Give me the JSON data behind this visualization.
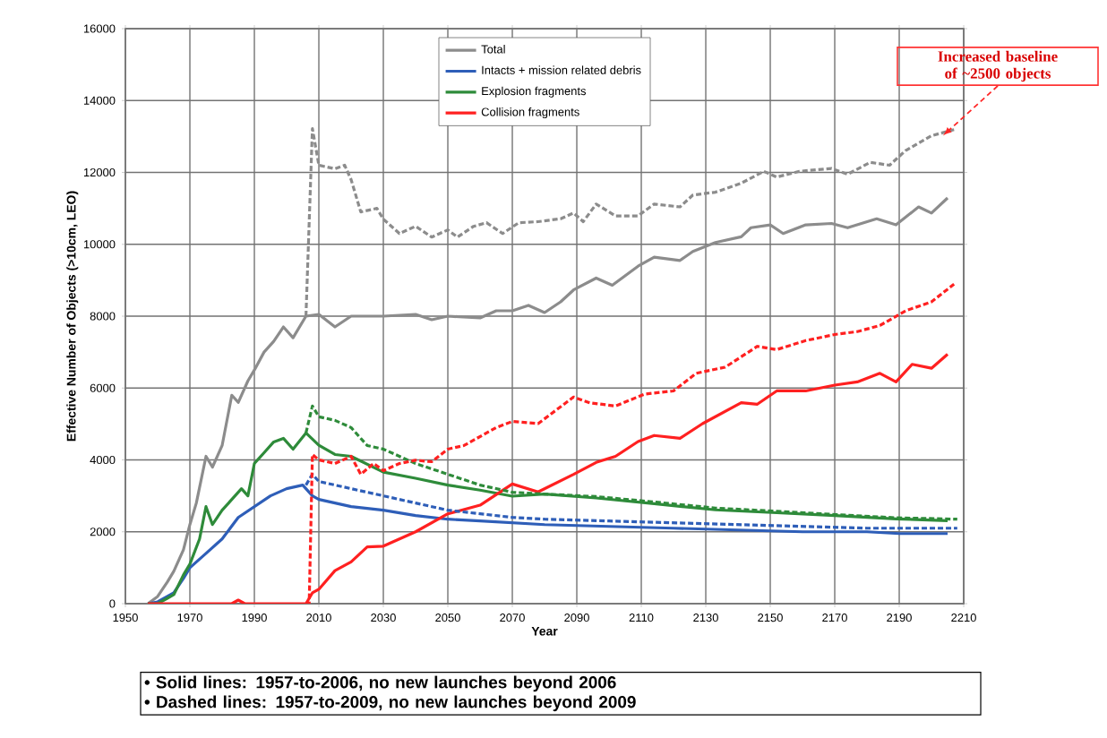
{
  "chart_data": {
    "type": "line",
    "xlabel": "Year",
    "ylabel": "Effective Number of Objects (>10cm, LEO)",
    "xlim": [
      1950,
      2210
    ],
    "xticks": [
      1950,
      1970,
      1990,
      2010,
      2030,
      2050,
      2070,
      2090,
      2110,
      2130,
      2150,
      2170,
      2190,
      2210
    ],
    "ylim": [
      0,
      16000
    ],
    "yticks": [
      0,
      2000,
      4000,
      6000,
      8000,
      10000,
      12000,
      14000,
      16000
    ],
    "grid": true,
    "legend": "top",
    "marker": "none",
    "series": [
      {
        "name": "Total",
        "color": "#8c8c8c",
        "line_style": "solid",
        "x": [
          1957,
          1960,
          1963,
          1965,
          1968,
          1970,
          1972,
          1975,
          1977,
          1980,
          1983,
          1985,
          1988,
          1990,
          1993,
          1996,
          1999,
          2002,
          2006,
          2010,
          2015,
          2020,
          2030,
          2040,
          2045,
          2050,
          2060,
          2065,
          2070,
          2075,
          2080,
          2085,
          2089,
          2096,
          2101,
          2109,
          2114,
          2122,
          2126,
          2133,
          2141,
          2144,
          2150,
          2154,
          2161,
          2169,
          2174,
          2183,
          2189,
          2196,
          2200,
          2205
        ],
        "values": [
          0,
          200,
          600,
          900,
          1500,
          2200,
          2800,
          4100,
          3800,
          4400,
          5800,
          5600,
          6200,
          6500,
          7000,
          7300,
          7700,
          7400,
          8000,
          8050,
          7700,
          8000,
          8000,
          8050,
          7900,
          8000,
          7950,
          8150,
          8150,
          8300,
          8100,
          8400,
          8730,
          9060,
          8860,
          9390,
          9640,
          9550,
          9800,
          10050,
          10210,
          10460,
          10540,
          10300,
          10540,
          10580,
          10460,
          10710,
          10540,
          11040,
          10870,
          11290
        ]
      },
      {
        "name": "Intacts + mission related debris",
        "color": "#2e5eb8",
        "line_style": "solid",
        "x": [
          1957,
          1960,
          1963,
          1965,
          1968,
          1970,
          1975,
          1980,
          1985,
          1990,
          1995,
          2000,
          2005,
          2008,
          2010,
          2015,
          2020,
          2030,
          2040,
          2050,
          2060,
          2070,
          2080,
          2100,
          2120,
          2140,
          2160,
          2180,
          2190,
          2205
        ],
        "values": [
          0,
          50,
          200,
          300,
          700,
          1000,
          1400,
          1800,
          2400,
          2700,
          3000,
          3200,
          3300,
          3000,
          2900,
          2800,
          2700,
          2600,
          2450,
          2350,
          2300,
          2250,
          2200,
          2150,
          2100,
          2050,
          2000,
          2000,
          1950,
          1950
        ]
      },
      {
        "name": "Explosion fragments",
        "color": "#2e8b3a",
        "line_style": "solid",
        "x": [
          1957,
          1960,
          1963,
          1965,
          1968,
          1970,
          1973,
          1975,
          1977,
          1980,
          1983,
          1986,
          1988,
          1990,
          1993,
          1996,
          1999,
          2002,
          2006,
          2010,
          2015,
          2020,
          2030,
          2040,
          2050,
          2060,
          2070,
          2080,
          2096,
          2114,
          2133,
          2152,
          2170,
          2189,
          2205
        ],
        "values": [
          0,
          0,
          150,
          250,
          800,
          1100,
          1800,
          2700,
          2200,
          2600,
          2900,
          3200,
          3000,
          3900,
          4200,
          4500,
          4600,
          4300,
          4750,
          4410,
          4150,
          4100,
          3660,
          3490,
          3300,
          3160,
          2990,
          3050,
          2940,
          2780,
          2610,
          2530,
          2450,
          2360,
          2310
        ]
      },
      {
        "name": "Collision fragments",
        "color": "#ff2020",
        "line_style": "solid",
        "x": [
          1957,
          1983,
          1985,
          1987,
          2006,
          2008,
          2010,
          2015,
          2020,
          2025,
          2030,
          2040,
          2050,
          2060,
          2070,
          2078,
          2089,
          2096,
          2102,
          2109,
          2114,
          2122,
          2129,
          2141,
          2146,
          2152,
          2161,
          2170,
          2177,
          2184,
          2189,
          2194,
          2200,
          2205
        ],
        "values": [
          0,
          0,
          100,
          0,
          0,
          300,
          400,
          920,
          1160,
          1580,
          1600,
          2000,
          2500,
          2740,
          3330,
          3110,
          3600,
          3930,
          4100,
          4510,
          4680,
          4600,
          5010,
          5590,
          5550,
          5920,
          5920,
          6080,
          6170,
          6410,
          6170,
          6660,
          6550,
          6940
        ]
      },
      {
        "color": "#8c8c8c",
        "line_style": "dashed",
        "x": [
          2006,
          2008,
          2010,
          2015,
          2018,
          2020,
          2023,
          2028,
          2030,
          2035,
          2040,
          2045,
          2050,
          2053,
          2058,
          2062,
          2067,
          2072,
          2078,
          2085,
          2089,
          2092,
          2096,
          2102,
          2109,
          2114,
          2122,
          2126,
          2133,
          2141,
          2148,
          2152,
          2159,
          2169,
          2174,
          2181,
          2187,
          2192,
          2200,
          2207
        ],
        "values": [
          8000,
          13220,
          12200,
          12100,
          12200,
          11800,
          10900,
          11000,
          10700,
          10300,
          10500,
          10200,
          10400,
          10200,
          10500,
          10600,
          10300,
          10600,
          10630,
          10710,
          10870,
          10630,
          11120,
          10790,
          10790,
          11120,
          11040,
          11370,
          11450,
          11700,
          12030,
          11870,
          12030,
          12110,
          11950,
          12280,
          12200,
          12610,
          13020,
          13190
        ]
      },
      {
        "color": "#2e5eb8",
        "line_style": "dashed",
        "x": [
          2006,
          2008,
          2010,
          2015,
          2020,
          2030,
          2040,
          2050,
          2060,
          2070,
          2080,
          2100,
          2120,
          2140,
          2160,
          2180,
          2200,
          2208
        ],
        "values": [
          3300,
          3600,
          3400,
          3300,
          3200,
          3000,
          2800,
          2600,
          2500,
          2400,
          2350,
          2300,
          2250,
          2200,
          2150,
          2100,
          2100,
          2100
        ]
      },
      {
        "color": "#2e8b3a",
        "line_style": "dashed",
        "x": [
          2006,
          2008,
          2010,
          2015,
          2020,
          2025,
          2030,
          2040,
          2050,
          2060,
          2070,
          2080,
          2096,
          2114,
          2133,
          2152,
          2170,
          2189,
          2208
        ],
        "values": [
          4750,
          5500,
          5200,
          5100,
          4900,
          4400,
          4300,
          3900,
          3600,
          3300,
          3100,
          3050,
          2980,
          2830,
          2660,
          2570,
          2480,
          2390,
          2350
        ]
      },
      {
        "color": "#ff2020",
        "line_style": "dashed",
        "x": [
          2006,
          2007,
          2008,
          2010,
          2015,
          2020,
          2023,
          2027,
          2030,
          2035,
          2040,
          2045,
          2050,
          2055,
          2060,
          2065,
          2070,
          2078,
          2089,
          2094,
          2102,
          2111,
          2120,
          2127,
          2136,
          2146,
          2152,
          2161,
          2170,
          2177,
          2184,
          2192,
          2200,
          2207
        ],
        "values": [
          0,
          0,
          4150,
          4000,
          3900,
          4100,
          3600,
          3900,
          3700,
          3900,
          3990,
          3950,
          4300,
          4400,
          4650,
          4900,
          5070,
          5010,
          5750,
          5590,
          5500,
          5830,
          5920,
          6410,
          6580,
          7160,
          7070,
          7320,
          7490,
          7570,
          7740,
          8150,
          8400,
          8890
        ]
      }
    ],
    "annotations": [
      {
        "text": "Increased baseline of ~2500 objects",
        "x": 2203,
        "y": 13020
      },
      "• Solid lines:      1957-to-2006, no new launches beyond 2006",
      "• Dashed lines:  1957-to-2009, no new launches beyond 2009"
    ]
  }
}
